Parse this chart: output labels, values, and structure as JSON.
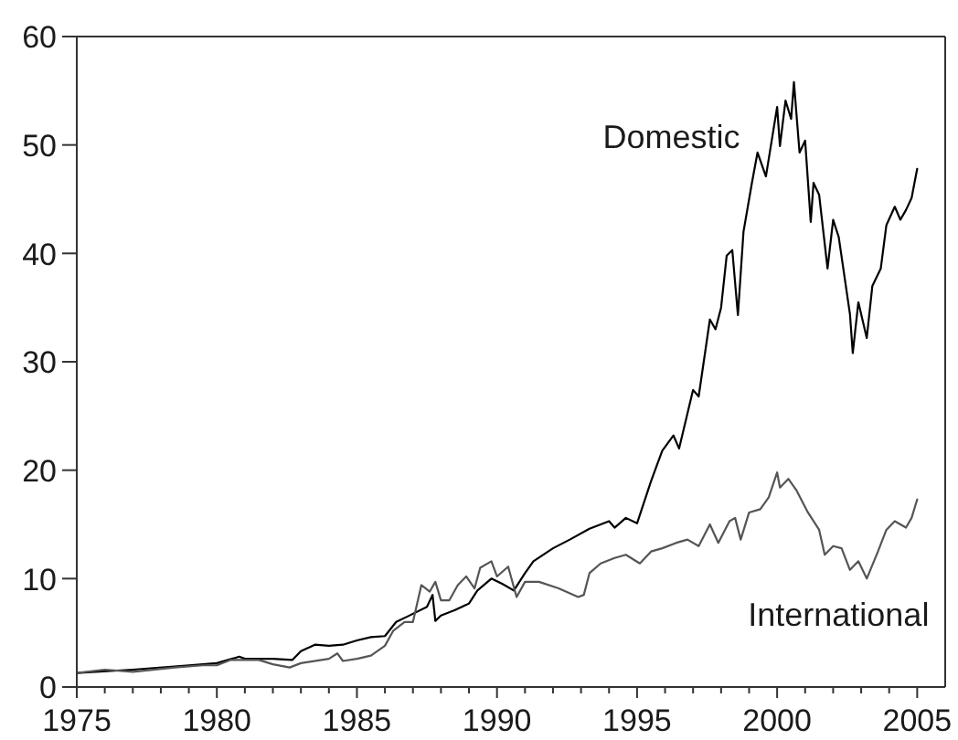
{
  "chart_data": {
    "type": "line",
    "xlim": [
      1975,
      2006
    ],
    "xticks": [
      1975,
      {
        "value": 1976,
        "label": null
      },
      {
        "value": 1977,
        "label": null
      },
      {
        "value": 1978,
        "label": null
      },
      {
        "value": 1979,
        "label": null
      },
      1980,
      {
        "value": 1981,
        "label": null
      },
      {
        "value": 1982,
        "label": null
      },
      {
        "value": 1983,
        "label": null
      },
      {
        "value": 1984,
        "label": null
      },
      1985,
      {
        "value": 1986,
        "label": null
      },
      {
        "value": 1987,
        "label": null
      },
      {
        "value": 1988,
        "label": null
      },
      {
        "value": 1989,
        "label": null
      },
      1990,
      {
        "value": 1991,
        "label": null
      },
      {
        "value": 1992,
        "label": null
      },
      {
        "value": 1993,
        "label": null
      },
      {
        "value": 1994,
        "label": null
      },
      1995,
      {
        "value": 1996,
        "label": null
      },
      {
        "value": 1997,
        "label": null
      },
      {
        "value": 1998,
        "label": null
      },
      {
        "value": 1999,
        "label": null
      },
      2000,
      {
        "value": 2001,
        "label": null
      },
      {
        "value": 2002,
        "label": null
      },
      {
        "value": 2003,
        "label": null
      },
      {
        "value": 2004,
        "label": null
      },
      2005
    ],
    "ylim": [
      0,
      60
    ],
    "yticks": [
      0,
      10,
      20,
      30,
      40,
      50,
      60
    ],
    "series": [
      {
        "name": "Domestic",
        "color": "#000000",
        "x": [
          1975,
          1977,
          1979,
          1980,
          1980.8,
          1981,
          1982,
          1982.7,
          1983,
          1983.5,
          1984,
          1984.5,
          1985,
          1985.5,
          1986,
          1986.4,
          1986.8,
          1987.5,
          1987.7,
          1987.8,
          1988,
          1988.5,
          1989,
          1989.3,
          1989.8,
          1990.2,
          1990.6,
          1991.0,
          1991.3,
          1992.0,
          1992.6,
          1993.3,
          1994.0,
          1994.2,
          1994.6,
          1995.0,
          1995.5,
          1995.9,
          1996.3,
          1996.5,
          1997.0,
          1997.2,
          1997.6,
          1997.8,
          1998.0,
          1998.2,
          1998.4,
          1998.6,
          1998.8,
          1999.1,
          1999.3,
          1999.6,
          2000.0,
          2000.1,
          2000.3,
          2000.5,
          2000.6,
          2000.8,
          2001.0,
          2001.2,
          2001.3,
          2001.5,
          2001.8,
          2002.0,
          2002.2,
          2002.6,
          2002.7,
          2002.9,
          2003.2,
          2003.4,
          2003.7,
          2003.9,
          2004.2,
          2004.4,
          2004.6,
          2004.8,
          2005.0
        ],
        "values": [
          1.3,
          1.6,
          2.0,
          2.2,
          2.8,
          2.6,
          2.6,
          2.5,
          3.3,
          3.9,
          3.8,
          3.9,
          4.3,
          4.6,
          4.7,
          6.0,
          6.5,
          7.4,
          8.5,
          6.1,
          6.6,
          7.1,
          7.7,
          8.9,
          10.0,
          9.5,
          8.9,
          10.5,
          11.6,
          12.8,
          13.6,
          14.6,
          15.3,
          14.7,
          15.6,
          15.1,
          19.0,
          21.8,
          23.2,
          22.0,
          27.4,
          26.8,
          33.9,
          33.0,
          35.0,
          39.8,
          40.3,
          34.3,
          42.0,
          46.5,
          49.3,
          47.1,
          53.5,
          49.9,
          54.1,
          52.4,
          55.8,
          49.3,
          50.4,
          42.9,
          46.5,
          45.4,
          38.6,
          43.1,
          41.5,
          34.4,
          30.8,
          35.5,
          32.2,
          37.0,
          38.6,
          42.6,
          44.3,
          43.1,
          44.0,
          45.1,
          47.8
        ]
      },
      {
        "name": "International",
        "color": "#555555",
        "x": [
          1975,
          1976,
          1977,
          1978.5,
          1979.5,
          1980,
          1980.5,
          1981.5,
          1982,
          1982.6,
          1983,
          1984,
          1984.3,
          1984.5,
          1985,
          1985.5,
          1986,
          1986.3,
          1986.7,
          1987,
          1987.3,
          1987.6,
          1987.8,
          1988,
          1988.3,
          1988.6,
          1988.9,
          1989.2,
          1989.4,
          1989.8,
          1990.0,
          1990.4,
          1990.7,
          1991.0,
          1991.5,
          1992.2,
          1992.9,
          1993.1,
          1993.3,
          1993.7,
          1994.2,
          1994.6,
          1995.1,
          1995.5,
          1995.9,
          1996.4,
          1996.8,
          1997.2,
          1997.6,
          1997.9,
          1998.3,
          1998.5,
          1998.7,
          1999.0,
          1999.4,
          1999.7,
          2000.0,
          2000.1,
          2000.4,
          2000.7,
          2001.1,
          2001.5,
          2001.7,
          2002.0,
          2002.3,
          2002.6,
          2002.9,
          2003.2,
          2003.6,
          2003.9,
          2004.2,
          2004.6,
          2004.8,
          2005.0
        ],
        "values": [
          1.3,
          1.6,
          1.4,
          1.8,
          2.0,
          2.0,
          2.5,
          2.5,
          2.1,
          1.8,
          2.2,
          2.6,
          3.1,
          2.4,
          2.6,
          2.9,
          3.8,
          5.2,
          6.0,
          6.0,
          9.4,
          8.8,
          9.7,
          8.0,
          8.0,
          9.4,
          10.2,
          9.1,
          11.0,
          11.6,
          10.2,
          11.1,
          8.3,
          9.7,
          9.7,
          9.1,
          8.3,
          8.5,
          10.5,
          11.4,
          11.9,
          12.2,
          11.4,
          12.5,
          12.8,
          13.3,
          13.6,
          13.0,
          15.0,
          13.3,
          15.3,
          15.6,
          13.6,
          16.1,
          16.4,
          17.5,
          19.8,
          18.4,
          19.2,
          18.1,
          16.1,
          14.5,
          12.2,
          13.0,
          12.8,
          10.8,
          11.6,
          10.0,
          12.5,
          14.5,
          15.3,
          14.7,
          15.6,
          17.3
        ]
      }
    ]
  }
}
